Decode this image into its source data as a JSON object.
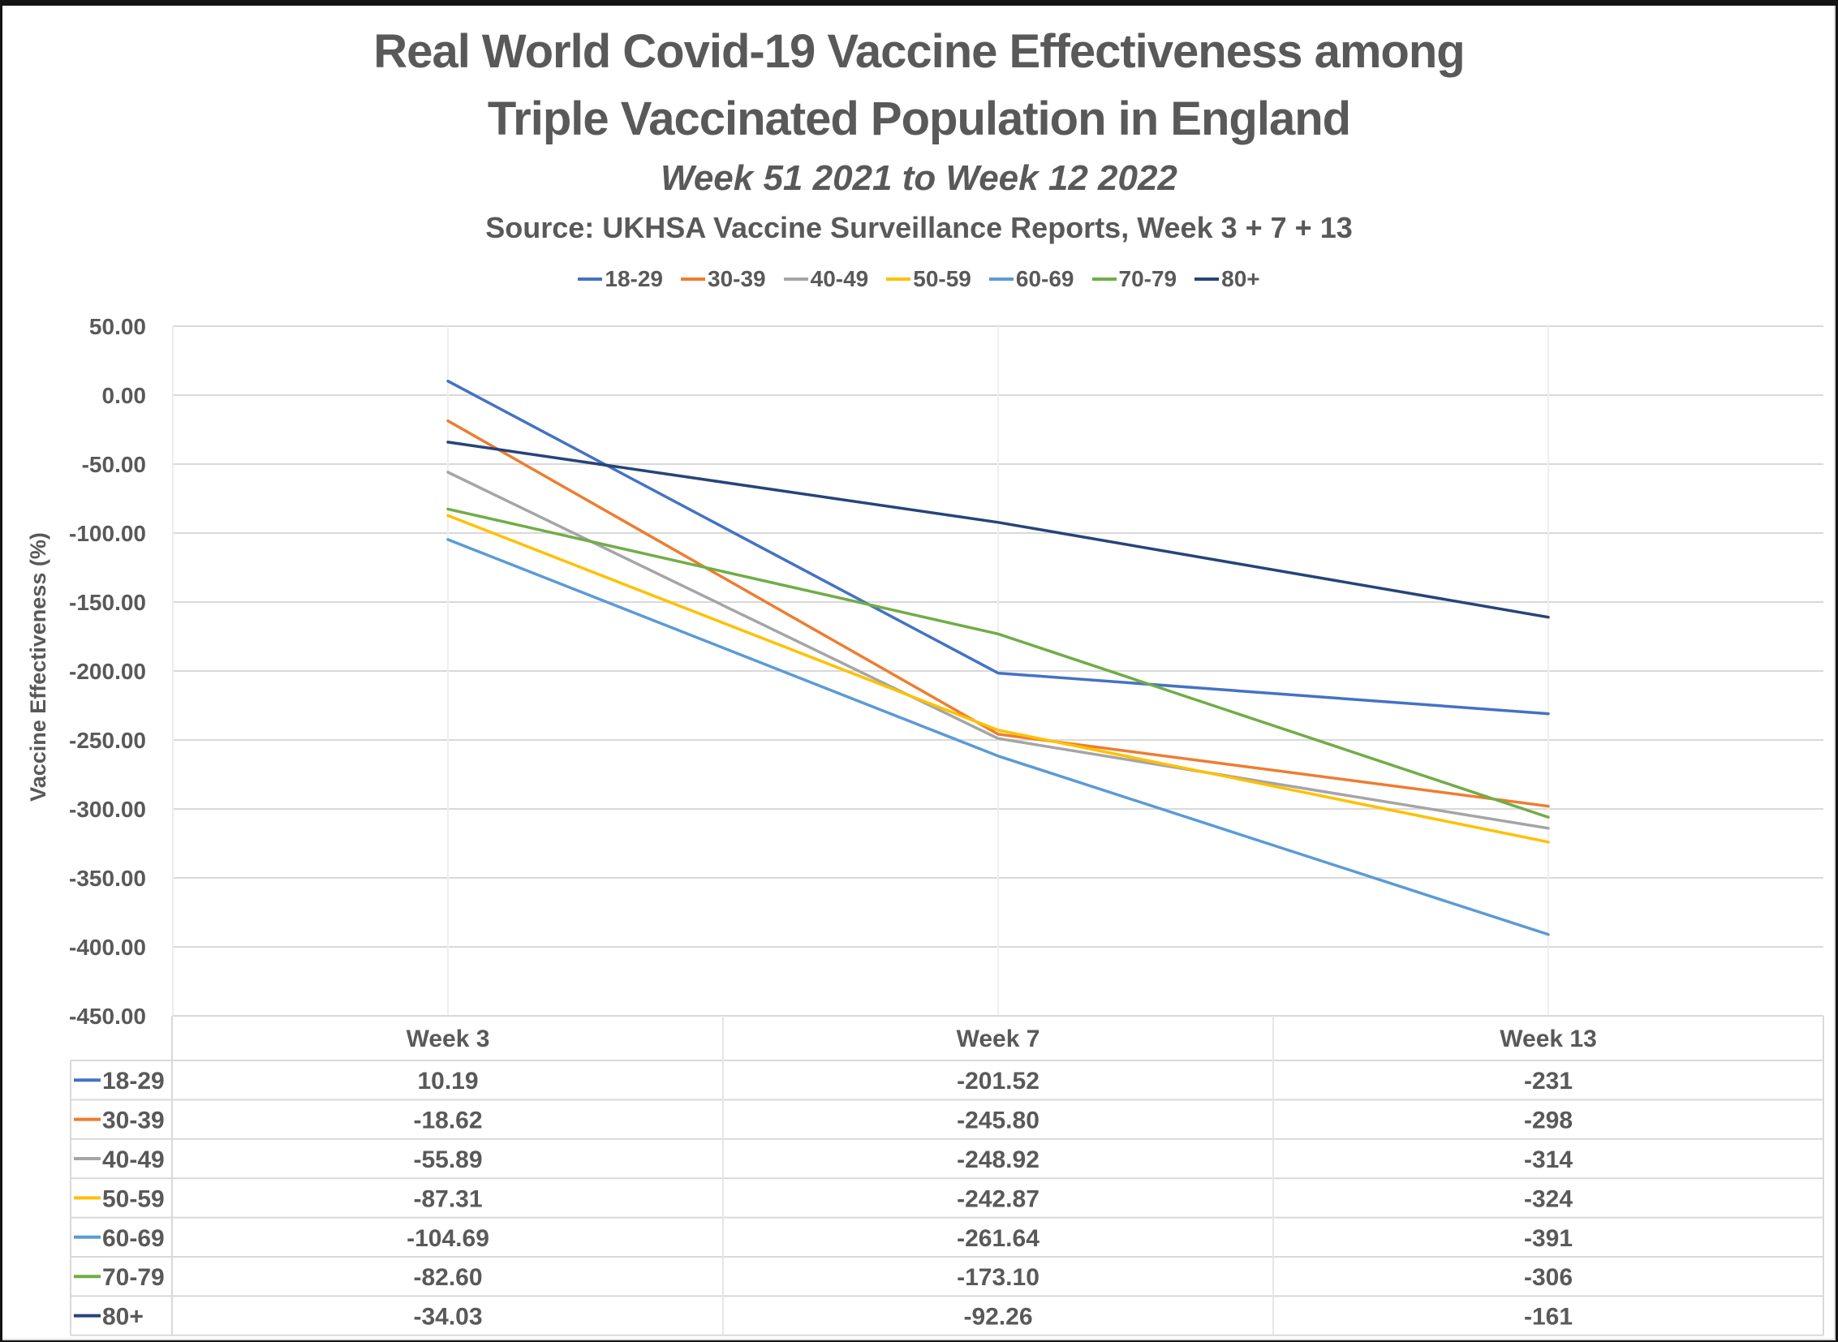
{
  "chart_data": {
    "type": "line",
    "title": "Real World Covid-19 Vaccine Effectiveness among Triple Vaccinated Population in England",
    "title_lines": [
      "Real World Covid-19 Vaccine Effectiveness among",
      "Triple Vaccinated Population in England"
    ],
    "subtitle": "Week 51 2021 to Week 12 2022",
    "source": "Source: UKHSA Vaccine Surveillance Reports, Week 3 + 7 + 13",
    "xlabel": "",
    "ylabel": "Vaccine Effectiveness (%)",
    "categories": [
      "Week 3",
      "Week 7",
      "Week 13"
    ],
    "ylim": [
      -450,
      50
    ],
    "yticks": [
      50,
      0,
      -50,
      -100,
      -150,
      -200,
      -250,
      -300,
      -350,
      -400,
      -450
    ],
    "ytick_labels": [
      "50.00",
      "0.00",
      "-50.00",
      "-100.00",
      "-150.00",
      "-200.00",
      "-250.00",
      "-300.00",
      "-350.00",
      "-400.00",
      "-450.00"
    ],
    "grid": true,
    "legend_position": "top",
    "data_table": true,
    "series": [
      {
        "name": "18-29",
        "color": "#4472C4",
        "values": [
          10.19,
          -201.52,
          -231
        ],
        "labels": [
          "10.19",
          "-201.52",
          "-231"
        ]
      },
      {
        "name": "30-39",
        "color": "#ED7D31",
        "values": [
          -18.62,
          -245.8,
          -298
        ],
        "labels": [
          "-18.62",
          "-245.80",
          "-298"
        ]
      },
      {
        "name": "40-49",
        "color": "#A5A5A5",
        "values": [
          -55.89,
          -248.92,
          -314
        ],
        "labels": [
          "-55.89",
          "-248.92",
          "-314"
        ]
      },
      {
        "name": "50-59",
        "color": "#FFC000",
        "values": [
          -87.31,
          -242.87,
          -324
        ],
        "labels": [
          "-87.31",
          "-242.87",
          "-324"
        ]
      },
      {
        "name": "60-69",
        "color": "#5B9BD5",
        "values": [
          -104.69,
          -261.64,
          -391
        ],
        "labels": [
          "-104.69",
          "-261.64",
          "-391"
        ]
      },
      {
        "name": "70-79",
        "color": "#70AD47",
        "values": [
          -82.6,
          -173.1,
          -306
        ],
        "labels": [
          "-82.60",
          "-173.10",
          "-306"
        ]
      },
      {
        "name": "80+",
        "color": "#264478",
        "values": [
          -34.03,
          -92.26,
          -161
        ],
        "labels": [
          "-34.03",
          "-92.26",
          "-161"
        ]
      }
    ]
  }
}
